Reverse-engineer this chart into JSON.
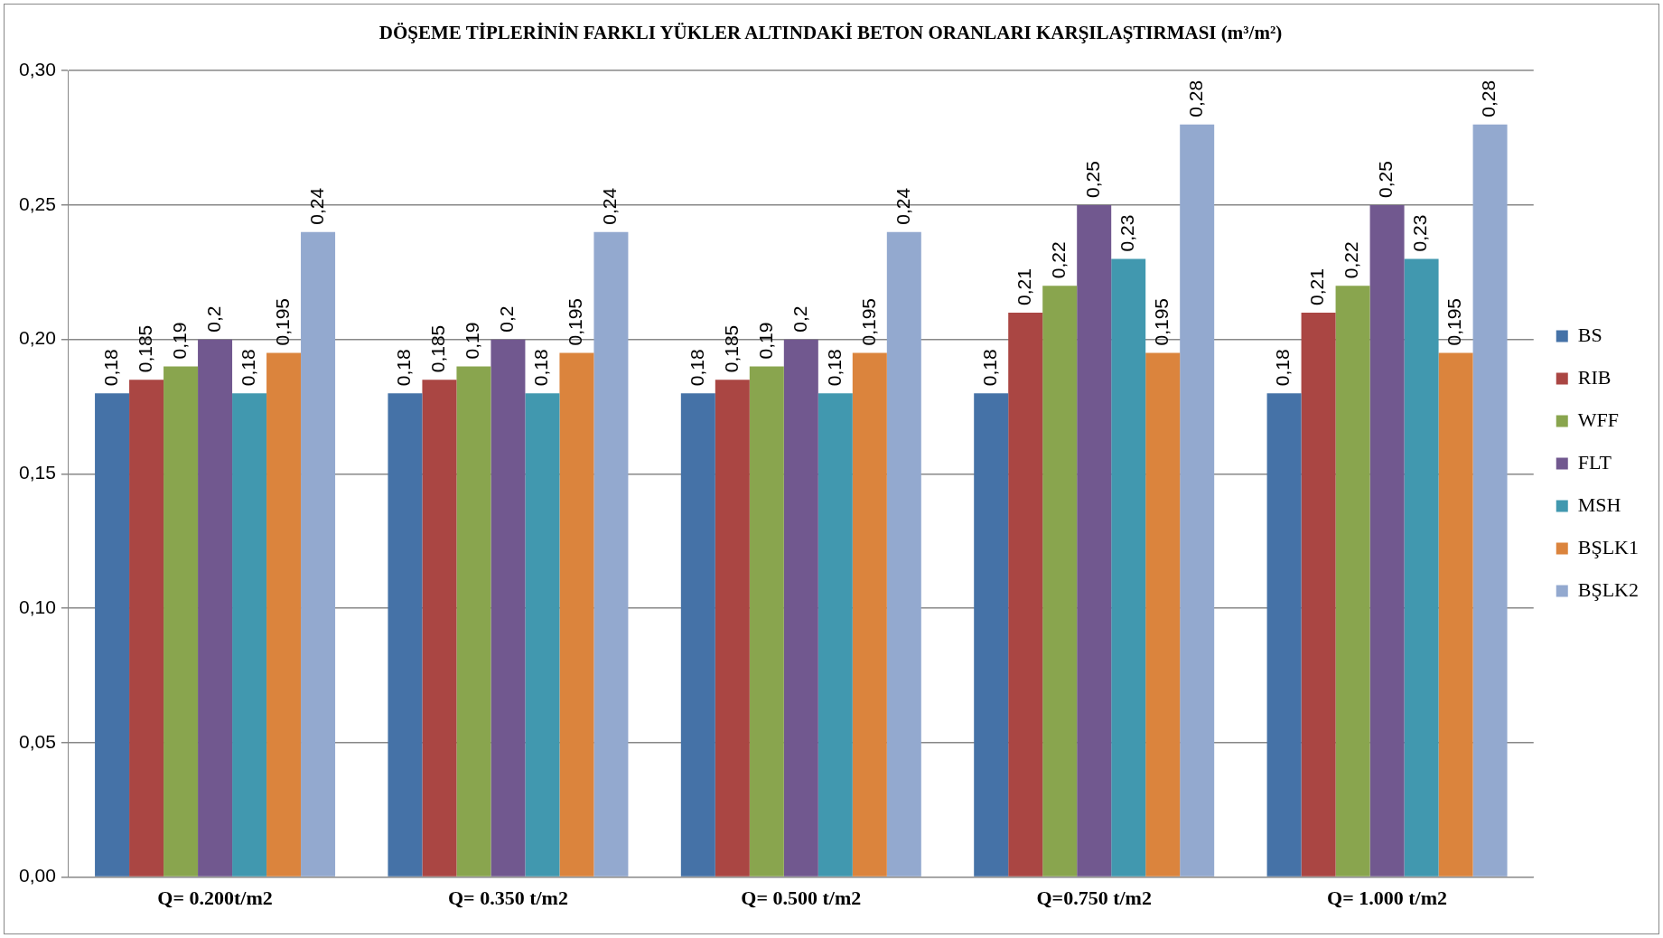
{
  "chart_data": {
    "type": "bar",
    "title": "DÖŞEME TİPLERİNİN FARKLI YÜKLER ALTINDAKİ BETON ORANLARI KARŞILAŞTIRMASI (m³/m²)",
    "categories": [
      "Q= 0.200t/m2",
      "Q= 0.350 t/m2",
      "Q= 0.500 t/m2",
      "Q=0.750 t/m2",
      "Q= 1.000 t/m2"
    ],
    "series": [
      {
        "name": "BS",
        "color": "#4572a7",
        "values": [
          0.18,
          0.18,
          0.18,
          0.18,
          0.18
        ],
        "value_labels": [
          "0,18",
          "0,18",
          "0,18",
          "0,18",
          "0,18"
        ]
      },
      {
        "name": "RIB",
        "color": "#aa4643",
        "values": [
          0.185,
          0.185,
          0.185,
          0.21,
          0.21
        ],
        "value_labels": [
          "0,185",
          "0,185",
          "0,185",
          "0,21",
          "0,21"
        ]
      },
      {
        "name": "WFF",
        "color": "#89a54e",
        "values": [
          0.19,
          0.19,
          0.19,
          0.22,
          0.22
        ],
        "value_labels": [
          "0,19",
          "0,19",
          "0,19",
          "0,22",
          "0,22"
        ]
      },
      {
        "name": "FLT",
        "color": "#71588f",
        "values": [
          0.2,
          0.2,
          0.2,
          0.25,
          0.25
        ],
        "value_labels": [
          "0,2",
          "0,2",
          "0,2",
          "0,25",
          "0,25"
        ]
      },
      {
        "name": "MSH",
        "color": "#4198af",
        "values": [
          0.18,
          0.18,
          0.18,
          0.23,
          0.23
        ],
        "value_labels": [
          "0,18",
          "0,18",
          "0,18",
          "0,23",
          "0,23"
        ]
      },
      {
        "name": "BŞLK1",
        "color": "#db843d",
        "values": [
          0.195,
          0.195,
          0.195,
          0.195,
          0.195
        ],
        "value_labels": [
          "0,195",
          "0,195",
          "0,195",
          "0,195",
          "0,195"
        ]
      },
      {
        "name": "BŞLK2",
        "color": "#93a9cf",
        "values": [
          0.24,
          0.24,
          0.24,
          0.28,
          0.28
        ],
        "value_labels": [
          "0,24",
          "0,24",
          "0,24",
          "0,28",
          "0,28"
        ]
      }
    ],
    "ylim": [
      0,
      0.3
    ],
    "yticks": [
      {
        "value": 0,
        "label": "0,00"
      },
      {
        "value": 0.05,
        "label": "0,05"
      },
      {
        "value": 0.1,
        "label": "0,10"
      },
      {
        "value": 0.15,
        "label": "0,15"
      },
      {
        "value": 0.2,
        "label": "0,20"
      },
      {
        "value": 0.25,
        "label": "0,25"
      },
      {
        "value": 0.3,
        "label": "0,30"
      }
    ],
    "grid": "y",
    "legend": "right"
  }
}
